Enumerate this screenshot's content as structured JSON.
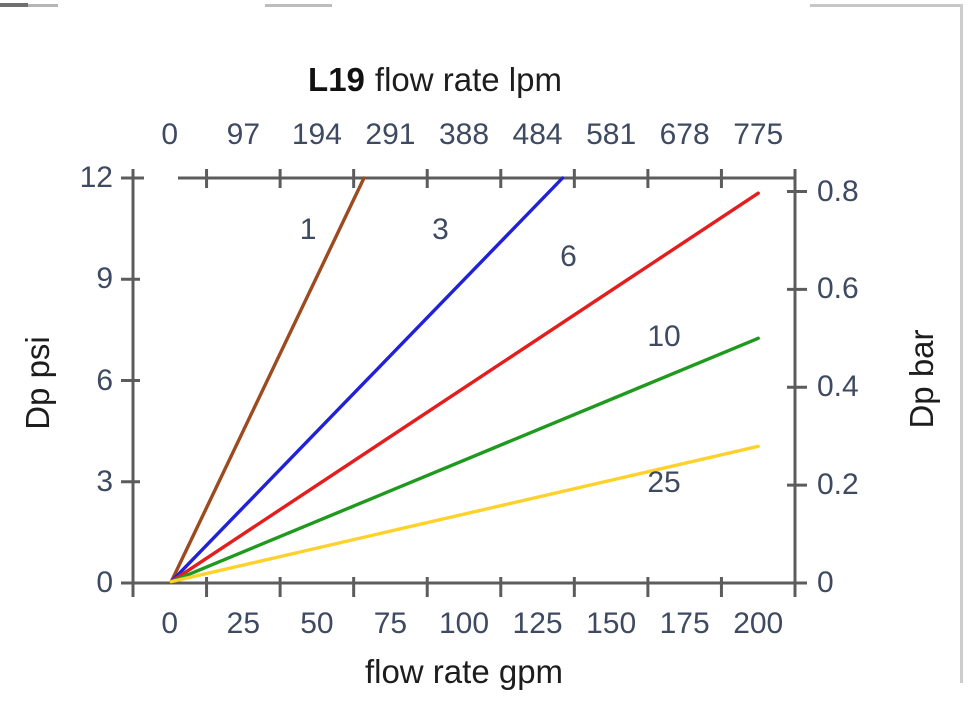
{
  "chart_data": {
    "type": "line",
    "title": "L19 flow rate lpm",
    "title_bold": "L19",
    "title_rest": "flow rate lpm",
    "x_top": {
      "unit": "lpm",
      "tick_labels": [
        "0",
        "97",
        "194",
        "291",
        "388",
        "484",
        "581",
        "678",
        "775"
      ]
    },
    "x_bottom": {
      "title": "flow rate gpm",
      "ticks_gpm": [
        0,
        25,
        50,
        75,
        100,
        125,
        150,
        175,
        200
      ]
    },
    "y_left": {
      "title": "Dp psi",
      "ticks_psi": [
        0,
        3,
        6,
        9,
        12
      ],
      "range": [
        0,
        12
      ]
    },
    "y_right": {
      "title": "Dp bar",
      "ticks_bar": [
        0,
        0.2,
        0.4,
        0.6,
        0.8
      ],
      "psi_per_bar": 14.5
    },
    "x_range_gpm": [
      -12.5,
      212.5
    ],
    "grid": false,
    "legend": "none",
    "series": [
      {
        "label": "1",
        "color": "#9c4a1e",
        "points_gpm_psi": [
          [
            0.5,
            0.04
          ],
          [
            66,
            12
          ]
        ],
        "label_at_gpm_psi": [
          47,
          10.45
        ]
      },
      {
        "label": "3",
        "color": "#2121d9",
        "points_gpm_psi": [
          [
            0.5,
            0.04
          ],
          [
            133.5,
            12
          ]
        ],
        "label_at_gpm_psi": [
          92,
          10.45
        ]
      },
      {
        "label": "6",
        "color": "#e41d1d",
        "points_gpm_psi": [
          [
            0.5,
            0.04
          ],
          [
            200,
            11.55
          ]
        ],
        "label_at_gpm_psi": [
          135.5,
          9.65
        ]
      },
      {
        "label": "10",
        "color": "#1f9a1f",
        "points_gpm_psi": [
          [
            0.5,
            0.04
          ],
          [
            200,
            7.25
          ]
        ],
        "label_at_gpm_psi": [
          168,
          7.3
        ]
      },
      {
        "label": "25",
        "color": "#ffd22b",
        "points_gpm_psi": [
          [
            0.5,
            0.04
          ],
          [
            200,
            4.05
          ]
        ],
        "label_at_gpm_psi": [
          168,
          2.95
        ]
      }
    ]
  }
}
